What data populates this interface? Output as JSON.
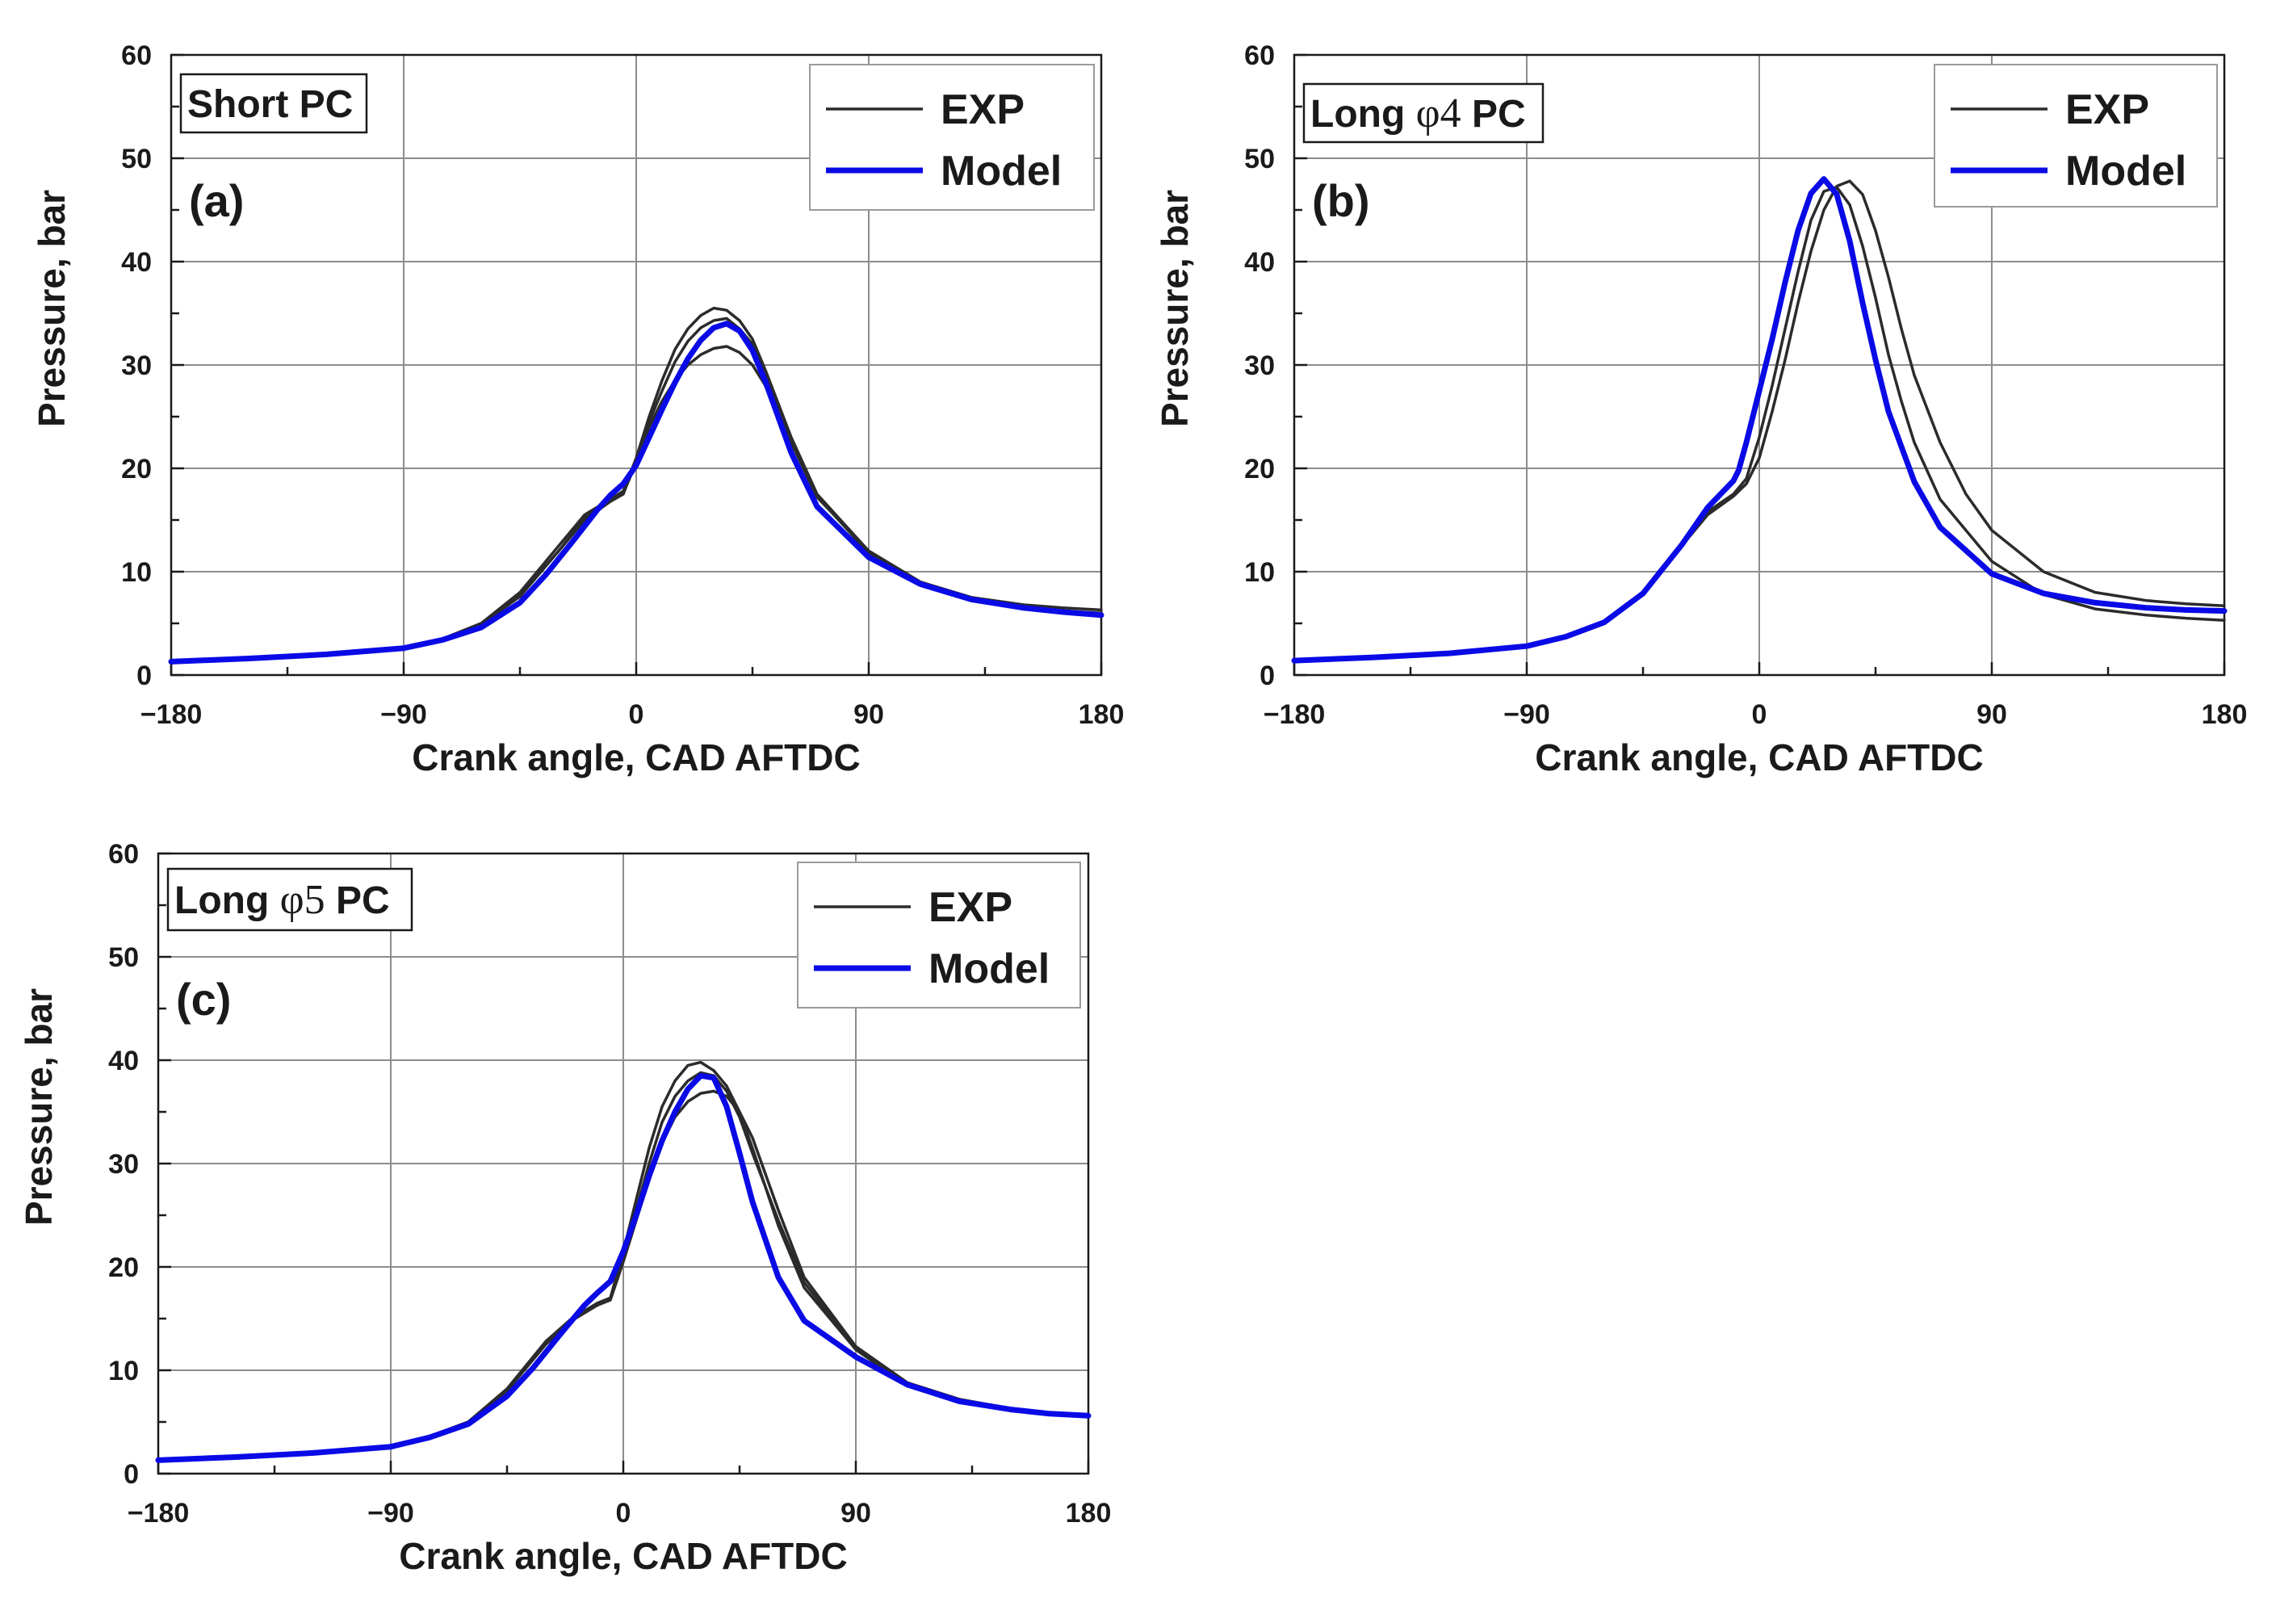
{
  "figure": {
    "background": "#ffffff"
  },
  "colors": {
    "exp": "#2b2b2b",
    "model": "#0a0ae6",
    "grid": "#8c8c8c",
    "axis": "#1a1a1a"
  },
  "chart_data": [
    {
      "type": "line",
      "panel": "a",
      "panel_label": "(a)",
      "title_parts": [
        "Short PC"
      ],
      "xlabel": "Crank angle, CAD AFTDC",
      "ylabel": "Pressure, bar",
      "xlim": [
        -180,
        180
      ],
      "ylim": [
        0,
        60
      ],
      "xticks": [
        -180,
        -90,
        0,
        90,
        180
      ],
      "xtick_labels": [
        "−180",
        "−90",
        "0",
        "90",
        "180"
      ],
      "yticks": [
        0,
        10,
        20,
        30,
        40,
        50,
        60
      ],
      "ytick_labels": [
        "0",
        "10",
        "20",
        "30",
        "40",
        "50",
        "60"
      ],
      "grid": true,
      "legend": {
        "position": "top-right",
        "entries": [
          "EXP",
          "Model"
        ]
      },
      "series": [
        {
          "name": "EXP",
          "kind": "exp",
          "x": [
            -180,
            -150,
            -120,
            -90,
            -75,
            -60,
            -45,
            -30,
            -20,
            -10,
            -5,
            0,
            5,
            10,
            15,
            20,
            25,
            30,
            35,
            40,
            45,
            50,
            60,
            70,
            90,
            110,
            130,
            150,
            165,
            180
          ],
          "y": [
            1.3,
            1.6,
            2.0,
            2.7,
            3.5,
            5.0,
            8.0,
            12.5,
            15.5,
            17.0,
            17.8,
            21.0,
            25.0,
            28.5,
            31.5,
            33.5,
            34.8,
            35.5,
            35.3,
            34.3,
            32.5,
            29.5,
            23.0,
            17.5,
            12.0,
            9.0,
            7.5,
            6.8,
            6.5,
            6.3
          ]
        },
        {
          "name": "EXP",
          "kind": "exp",
          "x": [
            -180,
            -150,
            -120,
            -90,
            -75,
            -60,
            -45,
            -30,
            -20,
            -10,
            -5,
            0,
            5,
            10,
            15,
            20,
            25,
            30,
            35,
            40,
            45,
            50,
            60,
            70,
            90,
            110,
            130,
            150,
            165,
            180
          ],
          "y": [
            1.3,
            1.6,
            2.0,
            2.7,
            3.5,
            5.0,
            7.8,
            12.0,
            15.0,
            16.8,
            17.6,
            20.5,
            24.0,
            26.5,
            28.5,
            30.0,
            31.0,
            31.6,
            31.8,
            31.2,
            30.0,
            28.0,
            22.5,
            17.2,
            12.0,
            9.0,
            7.4,
            6.6,
            6.2,
            6.0
          ]
        },
        {
          "name": "EXP",
          "kind": "exp",
          "x": [
            -180,
            -150,
            -120,
            -90,
            -75,
            -60,
            -45,
            -30,
            -20,
            -10,
            -5,
            0,
            5,
            10,
            15,
            20,
            25,
            30,
            35,
            40,
            45,
            50,
            60,
            70,
            90,
            110,
            130,
            150,
            165,
            180
          ],
          "y": [
            1.3,
            1.6,
            2.0,
            2.7,
            3.5,
            4.9,
            7.6,
            12.0,
            15.2,
            16.8,
            17.5,
            20.8,
            24.5,
            27.5,
            30.3,
            32.3,
            33.6,
            34.3,
            34.5,
            33.5,
            32.0,
            29.0,
            22.8,
            17.3,
            11.8,
            8.8,
            7.2,
            6.4,
            6.0,
            5.8
          ]
        },
        {
          "name": "Model",
          "kind": "model",
          "x": [
            -180,
            -150,
            -120,
            -90,
            -75,
            -60,
            -45,
            -35,
            -25,
            -15,
            -10,
            -5,
            0,
            5,
            10,
            15,
            20,
            25,
            30,
            35,
            40,
            45,
            50,
            60,
            70,
            90,
            110,
            130,
            150,
            165,
            180
          ],
          "y": [
            1.3,
            1.6,
            2.0,
            2.6,
            3.4,
            4.6,
            7.0,
            9.7,
            12.8,
            16.0,
            17.4,
            18.5,
            20.3,
            23.0,
            25.7,
            28.3,
            30.6,
            32.4,
            33.6,
            34.0,
            33.3,
            31.4,
            28.4,
            21.5,
            16.3,
            11.4,
            8.8,
            7.3,
            6.5,
            6.1,
            5.8
          ]
        }
      ]
    },
    {
      "type": "line",
      "panel": "b",
      "panel_label": "(b)",
      "title_parts": [
        "Long ",
        "φ4",
        " PC"
      ],
      "xlabel": "Crank angle, CAD AFTDC",
      "ylabel": "Pressure, bar",
      "xlim": [
        -180,
        180
      ],
      "ylim": [
        0,
        60
      ],
      "xticks": [
        -180,
        -90,
        0,
        90,
        180
      ],
      "xtick_labels": [
        "−180",
        "−90",
        "0",
        "90",
        "180"
      ],
      "yticks": [
        0,
        10,
        20,
        30,
        40,
        50,
        60
      ],
      "ytick_labels": [
        "0",
        "10",
        "20",
        "30",
        "40",
        "50",
        "60"
      ],
      "grid": true,
      "legend": {
        "position": "top-right",
        "entries": [
          "EXP",
          "Model"
        ]
      },
      "series": [
        {
          "name": "EXP",
          "kind": "exp",
          "x": [
            -180,
            -150,
            -120,
            -90,
            -75,
            -60,
            -45,
            -30,
            -20,
            -10,
            -5,
            0,
            5,
            10,
            15,
            20,
            25,
            30,
            35,
            40,
            45,
            50,
            55,
            60,
            70,
            90,
            110,
            130,
            150,
            165,
            180
          ],
          "y": [
            1.4,
            1.7,
            2.1,
            2.9,
            3.8,
            5.2,
            8.0,
            12.5,
            15.8,
            17.5,
            19.0,
            23.0,
            28.0,
            33.5,
            39.0,
            44.0,
            46.8,
            47.2,
            45.5,
            41.5,
            36.5,
            31.0,
            26.5,
            22.5,
            17.0,
            11.0,
            7.8,
            6.4,
            5.8,
            5.5,
            5.3
          ]
        },
        {
          "name": "EXP",
          "kind": "exp",
          "x": [
            -180,
            -150,
            -120,
            -90,
            -75,
            -60,
            -45,
            -30,
            -20,
            -10,
            -5,
            0,
            5,
            10,
            15,
            20,
            25,
            30,
            35,
            40,
            45,
            50,
            55,
            60,
            70,
            80,
            90,
            110,
            130,
            150,
            165,
            180
          ],
          "y": [
            1.4,
            1.7,
            2.1,
            2.9,
            3.8,
            5.2,
            8.0,
            12.5,
            15.5,
            17.3,
            18.5,
            21.0,
            25.5,
            30.5,
            36.0,
            41.0,
            45.0,
            47.3,
            47.8,
            46.5,
            43.0,
            38.5,
            33.5,
            29.0,
            22.5,
            17.5,
            14.0,
            10.0,
            8.0,
            7.2,
            6.9,
            6.7
          ]
        },
        {
          "name": "Model",
          "kind": "model",
          "x": [
            -180,
            -150,
            -120,
            -90,
            -75,
            -60,
            -45,
            -30,
            -20,
            -10,
            -8,
            -5,
            0,
            5,
            10,
            15,
            20,
            25,
            30,
            35,
            40,
            45,
            50,
            60,
            70,
            90,
            110,
            130,
            150,
            165,
            180
          ],
          "y": [
            1.4,
            1.7,
            2.1,
            2.8,
            3.7,
            5.1,
            7.9,
            12.6,
            16.2,
            18.8,
            19.8,
            22.5,
            27.5,
            32.5,
            38.0,
            43.0,
            46.6,
            48.0,
            46.5,
            42.0,
            36.0,
            30.5,
            25.5,
            18.7,
            14.3,
            9.8,
            7.9,
            7.0,
            6.5,
            6.3,
            6.2
          ]
        }
      ]
    },
    {
      "type": "line",
      "panel": "c",
      "panel_label": "(c)",
      "title_parts": [
        "Long ",
        "φ5",
        " PC"
      ],
      "xlabel": "Crank angle, CAD AFTDC",
      "ylabel": "Pressure, bar",
      "xlim": [
        -180,
        180
      ],
      "ylim": [
        0,
        60
      ],
      "xticks": [
        -180,
        -90,
        0,
        90,
        180
      ],
      "xtick_labels": [
        "−180",
        "−90",
        "0",
        "90",
        "180"
      ],
      "yticks": [
        0,
        10,
        20,
        30,
        40,
        50,
        60
      ],
      "ytick_labels": [
        "0",
        "10",
        "20",
        "30",
        "40",
        "50",
        "60"
      ],
      "grid": true,
      "legend": {
        "position": "top-right",
        "entries": [
          "EXP",
          "Model"
        ]
      },
      "series": [
        {
          "name": "EXP",
          "kind": "exp",
          "x": [
            -180,
            -150,
            -120,
            -90,
            -75,
            -60,
            -45,
            -30,
            -20,
            -10,
            -5,
            0,
            5,
            10,
            15,
            20,
            25,
            30,
            35,
            40,
            45,
            50,
            60,
            70,
            90,
            110,
            130,
            150,
            165,
            180
          ],
          "y": [
            1.3,
            1.6,
            2.0,
            2.7,
            3.6,
            5.0,
            8.2,
            12.8,
            15.0,
            16.5,
            17.0,
            21.5,
            26.5,
            31.5,
            35.5,
            38.0,
            39.5,
            39.8,
            39.0,
            37.5,
            35.0,
            31.5,
            24.0,
            18.0,
            12.0,
            8.5,
            7.0,
            6.2,
            5.8,
            5.6
          ]
        },
        {
          "name": "EXP",
          "kind": "exp",
          "x": [
            -180,
            -150,
            -120,
            -90,
            -75,
            -60,
            -45,
            -30,
            -20,
            -10,
            -5,
            0,
            5,
            10,
            15,
            20,
            25,
            30,
            35,
            40,
            45,
            50,
            60,
            70,
            90,
            110,
            130,
            150,
            165,
            180
          ],
          "y": [
            1.3,
            1.6,
            2.0,
            2.7,
            3.6,
            5.0,
            8.0,
            12.5,
            14.8,
            16.3,
            16.8,
            20.5,
            24.5,
            28.5,
            32.0,
            34.5,
            36.0,
            36.8,
            37.0,
            36.5,
            35.0,
            32.5,
            25.5,
            19.0,
            12.3,
            8.8,
            7.2,
            6.3,
            5.9,
            5.7
          ]
        },
        {
          "name": "EXP",
          "kind": "exp",
          "x": [
            -180,
            -150,
            -120,
            -90,
            -75,
            -60,
            -45,
            -30,
            -20,
            -10,
            -5,
            0,
            5,
            10,
            15,
            20,
            25,
            30,
            35,
            40,
            45,
            50,
            60,
            70,
            90,
            110,
            130,
            150,
            165,
            180
          ],
          "y": [
            1.3,
            1.6,
            2.0,
            2.7,
            3.6,
            5.0,
            8.1,
            12.6,
            15.0,
            16.4,
            16.9,
            21.0,
            25.5,
            30.0,
            34.0,
            36.5,
            38.0,
            38.8,
            38.5,
            37.0,
            34.5,
            31.0,
            24.5,
            18.5,
            12.1,
            8.6,
            7.1,
            6.2,
            5.8,
            5.6
          ]
        },
        {
          "name": "Model",
          "kind": "model",
          "x": [
            -180,
            -150,
            -120,
            -90,
            -75,
            -60,
            -45,
            -35,
            -25,
            -15,
            -10,
            -5,
            0,
            5,
            10,
            15,
            20,
            25,
            30,
            35,
            40,
            45,
            50,
            60,
            70,
            90,
            110,
            130,
            150,
            165,
            180
          ],
          "y": [
            1.3,
            1.6,
            2.0,
            2.6,
            3.5,
            4.8,
            7.5,
            10.2,
            13.3,
            16.3,
            17.5,
            18.6,
            21.5,
            25.0,
            28.8,
            32.2,
            35.0,
            37.2,
            38.5,
            38.3,
            35.5,
            31.0,
            26.3,
            19.0,
            14.8,
            11.3,
            8.6,
            7.0,
            6.2,
            5.8,
            5.6
          ]
        }
      ]
    }
  ]
}
